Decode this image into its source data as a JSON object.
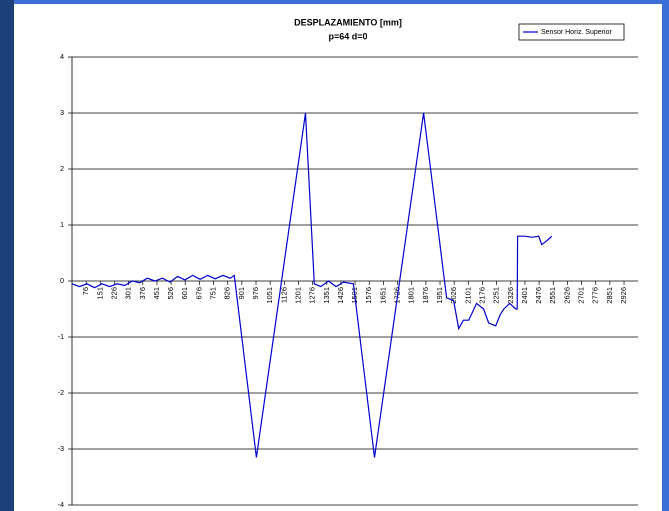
{
  "chart_data": {
    "type": "line",
    "title": "DESPLAZAMIENTO [mm]",
    "subtitle": "p=64 d=0",
    "x": [
      1,
      40,
      80,
      120,
      160,
      200,
      240,
      280,
      320,
      360,
      400,
      440,
      480,
      520,
      560,
      600,
      640,
      680,
      720,
      760,
      800,
      840,
      861,
      978,
      1238,
      1285,
      1320,
      1360,
      1400,
      1440,
      1492,
      1604,
      1864,
      1986,
      2023,
      2050,
      2075,
      2103,
      2145,
      2182,
      2209,
      2246,
      2270,
      2289,
      2320,
      2352,
      2360,
      2362,
      2400,
      2440,
      2474,
      2490,
      2510,
      2527,
      2543
    ],
    "series": [
      {
        "name": "Sensor Horiz. Superior",
        "color": "#0000cc",
        "values": [
          -0.05,
          -0.1,
          -0.05,
          -0.12,
          -0.05,
          -0.1,
          -0.05,
          -0.08,
          0,
          -0.03,
          0.05,
          0,
          0.05,
          -0.02,
          0.08,
          0.02,
          0.1,
          0.03,
          0.1,
          0.04,
          0.1,
          0.05,
          0.1,
          -3.15,
          3,
          -0.05,
          -0.1,
          0,
          -0.1,
          -0.02,
          -0.05,
          -3.15,
          3,
          -0.3,
          -0.35,
          -0.85,
          -0.7,
          -0.7,
          -0.4,
          -0.5,
          -0.75,
          -0.8,
          -0.6,
          -0.5,
          -0.4,
          -0.5,
          -0.5,
          0.8,
          0.8,
          0.78,
          0.8,
          0.65,
          0.7,
          0.75,
          0.8
        ]
      }
    ],
    "xlim": [
      1,
      3000
    ],
    "xticks": [
      76,
      151,
      226,
      301,
      376,
      451,
      526,
      601,
      676,
      751,
      826,
      901,
      976,
      1051,
      1126,
      1201,
      1276,
      1351,
      1426,
      1501,
      1576,
      1651,
      1726,
      1801,
      1876,
      1951,
      2026,
      2101,
      2176,
      2251,
      2326,
      2401,
      2476,
      2551,
      2626,
      2701,
      2776,
      2851,
      2926
    ],
    "ylim": [
      -4,
      4
    ],
    "yticks": [
      -4,
      -3,
      -2,
      -1,
      0,
      1,
      2,
      3,
      4
    ],
    "grid": true,
    "legend": "top-right"
  }
}
